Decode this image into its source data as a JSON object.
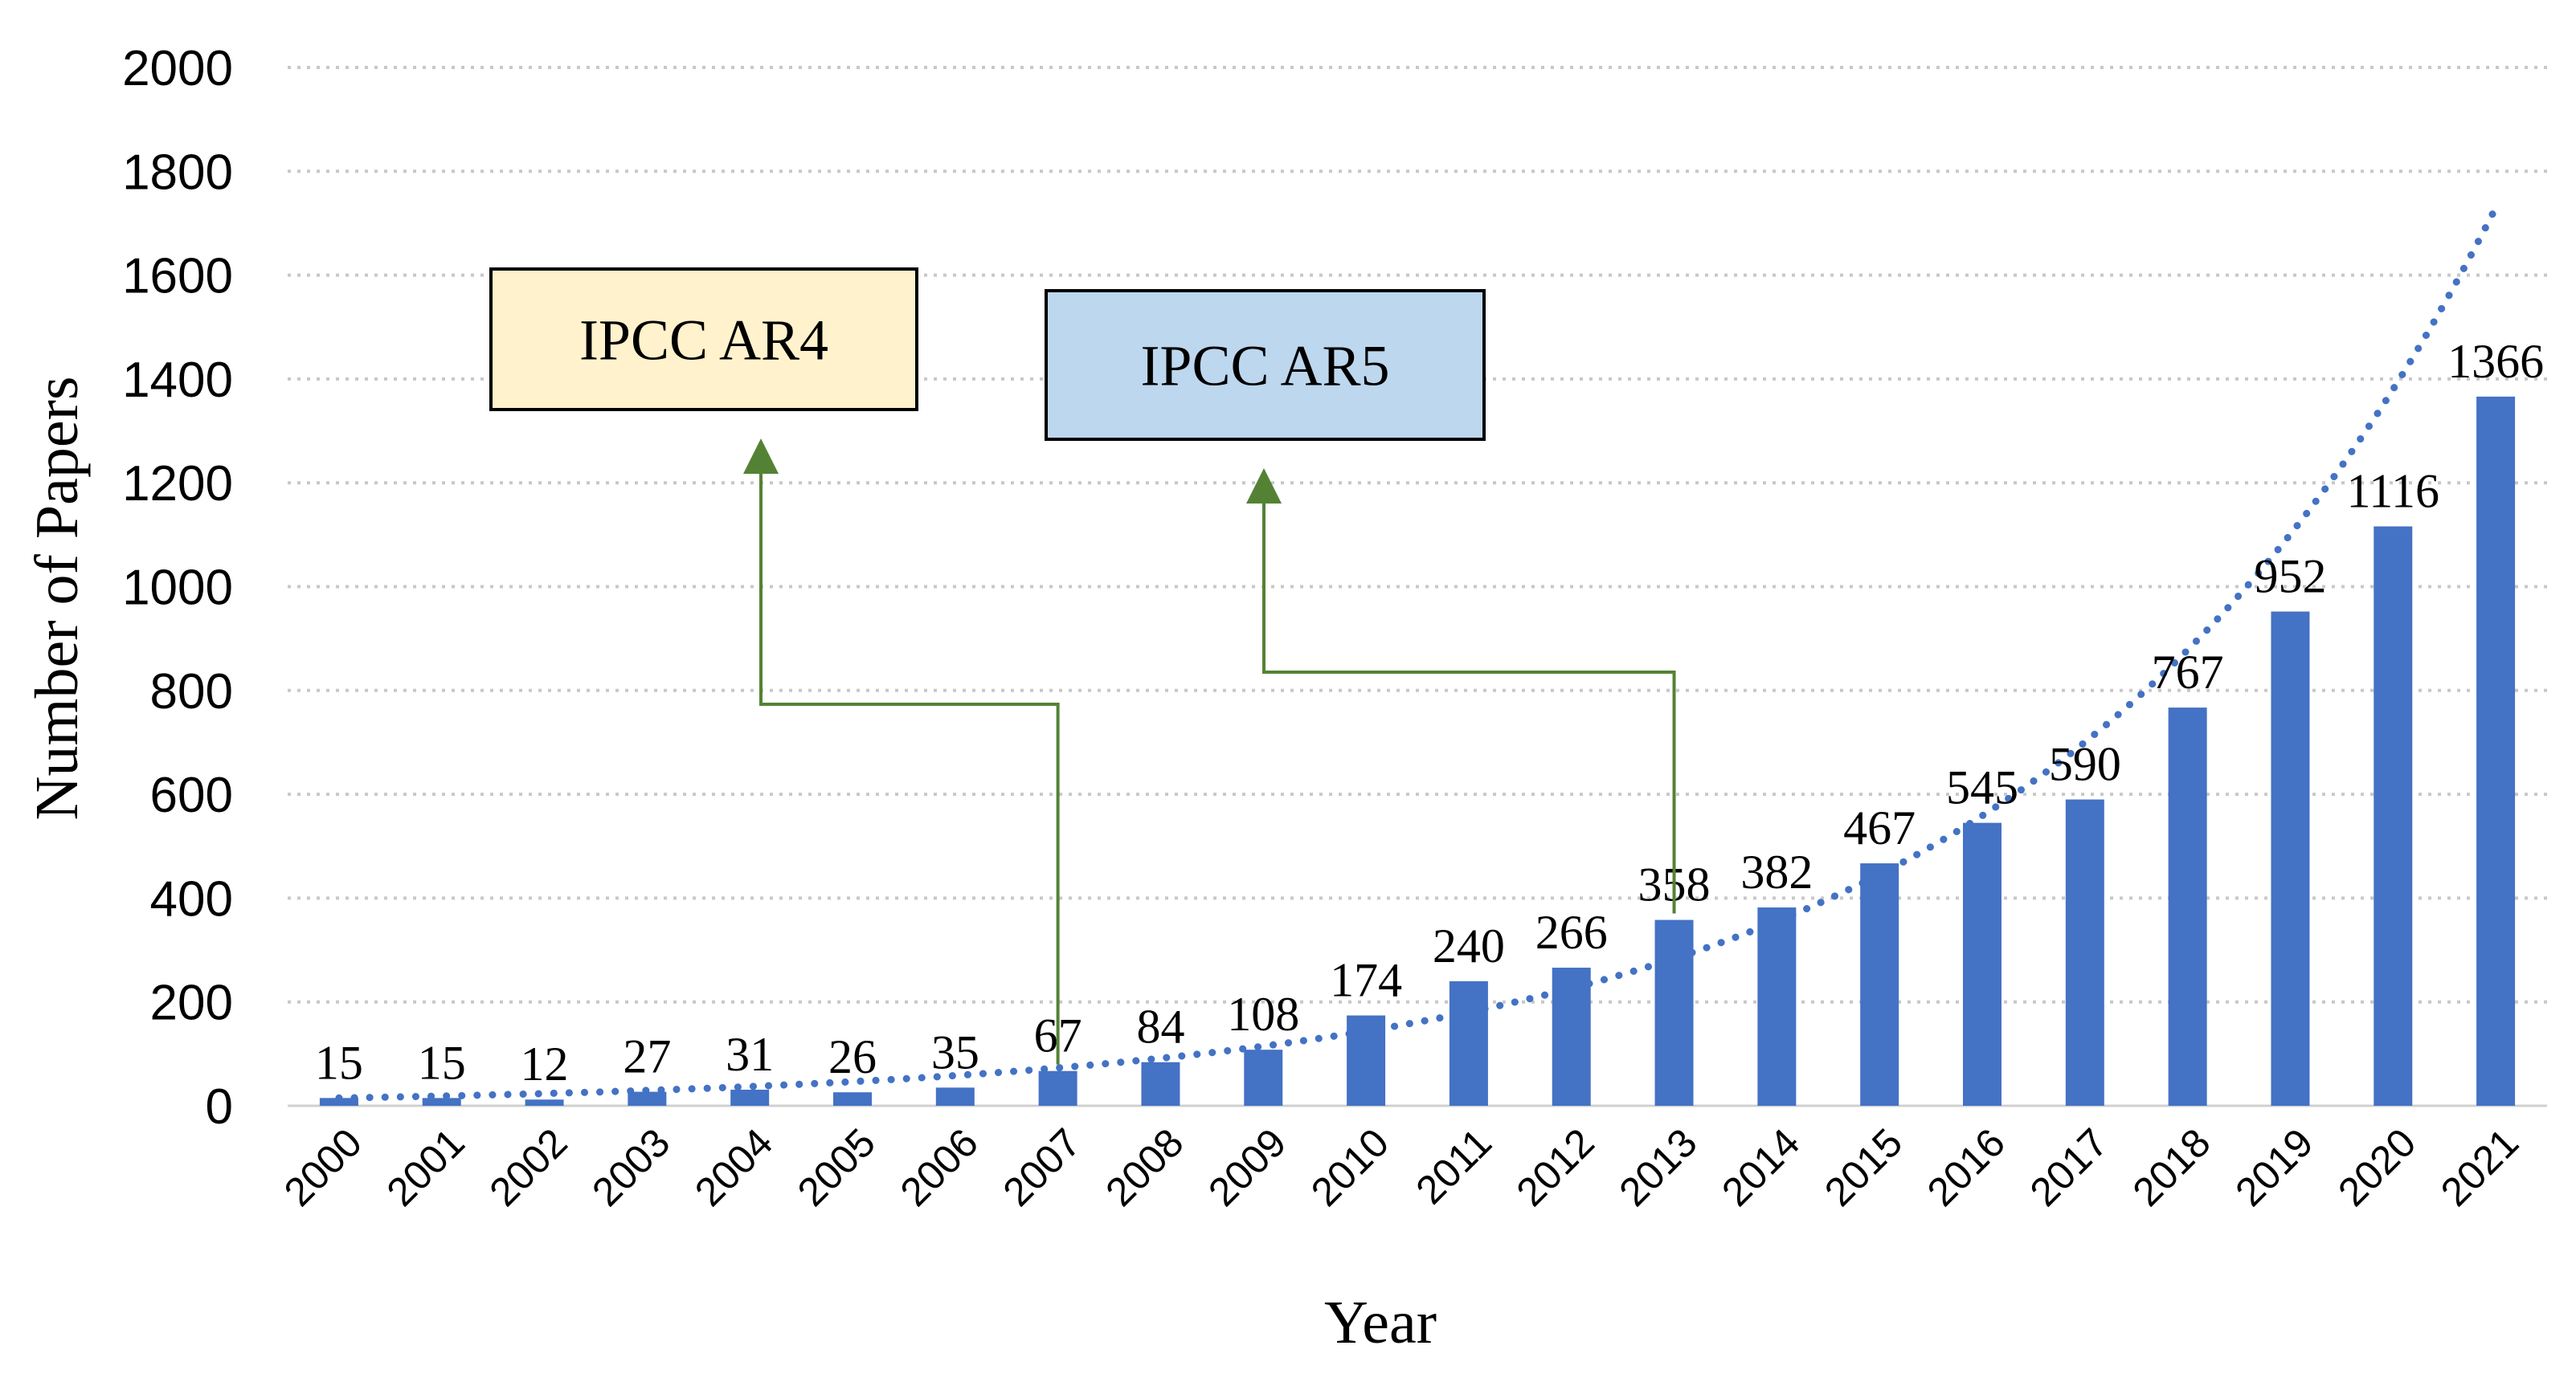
{
  "chart_data": {
    "type": "bar",
    "title": "",
    "xlabel": "Year",
    "ylabel": "Number of Papers",
    "ylim": [
      0,
      2000
    ],
    "ytick_step": 200,
    "grid": true,
    "categories": [
      "2000",
      "2001",
      "2002",
      "2003",
      "2004",
      "2005",
      "2006",
      "2007",
      "2008",
      "2009",
      "2010",
      "2011",
      "2012",
      "2013",
      "2014",
      "2015",
      "2016",
      "2017",
      "2018",
      "2019",
      "2020",
      "2021"
    ],
    "values": [
      15,
      15,
      12,
      27,
      31,
      26,
      35,
      67,
      84,
      108,
      174,
      240,
      266,
      358,
      382,
      467,
      545,
      590,
      767,
      952,
      1116,
      1366
    ],
    "bar_color": "#4472c4",
    "trendline": {
      "type": "exponential",
      "style": "dotted",
      "color": "#4472c4",
      "start_value": 15,
      "end_value": 1730
    },
    "annotations": [
      {
        "label": "IPCC AR4",
        "year": "2007",
        "fill": "#fff2cc",
        "arrow_color": "#548235"
      },
      {
        "label": "IPCC AR5",
        "year": "2013",
        "fill": "#bdd7ee",
        "arrow_color": "#548235"
      }
    ]
  }
}
